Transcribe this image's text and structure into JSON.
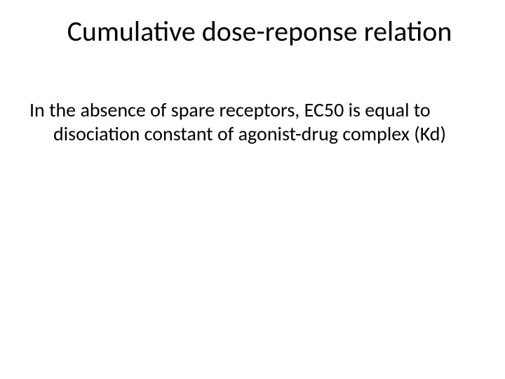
{
  "slide": {
    "title": "Cumulative dose-reponse relation",
    "body_line": "In the absence of spare receptors, EC50 is equal to disociation constant of agonist-drug complex (Kd)"
  },
  "style": {
    "background_color": "#ffffff",
    "text_color": "#000000",
    "title_fontsize": 40,
    "body_fontsize": 28,
    "font_family": "Calibri"
  }
}
